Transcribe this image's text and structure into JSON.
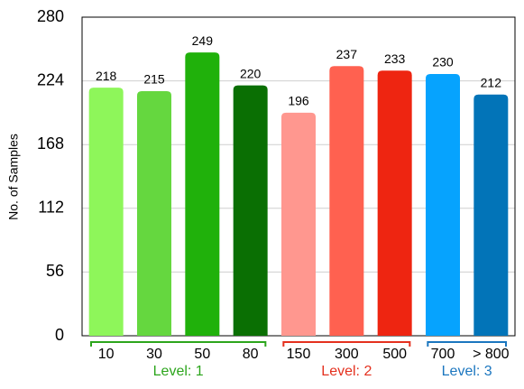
{
  "chart_data": {
    "type": "bar",
    "y_label": "No. of Samples",
    "categories": [
      "10",
      "30",
      "50",
      "80",
      "150",
      "300",
      "500",
      "700",
      "> 800"
    ],
    "values": [
      218,
      215,
      249,
      220,
      196,
      237,
      233,
      230,
      212
    ],
    "colors": [
      "#8ef65a",
      "#65d73f",
      "#20b10b",
      "#0a6f03",
      "#ff978f",
      "#ff6150",
      "#ee2511",
      "#06a3fe",
      "#0274b8"
    ],
    "ylim": [
      0,
      280
    ],
    "yticks": [
      0,
      56,
      112,
      168,
      224,
      280
    ],
    "grid": true,
    "groups": [
      {
        "label": "Level: 1",
        "color": "#2ca51c",
        "categories": [
          "10",
          "30",
          "50",
          "80"
        ]
      },
      {
        "label": "Level: 2",
        "color": "#e4301e",
        "categories": [
          "150",
          "300",
          "500"
        ]
      },
      {
        "label": "Level: 3",
        "color": "#1b76bf",
        "categories": [
          "700",
          "> 800"
        ]
      }
    ]
  }
}
